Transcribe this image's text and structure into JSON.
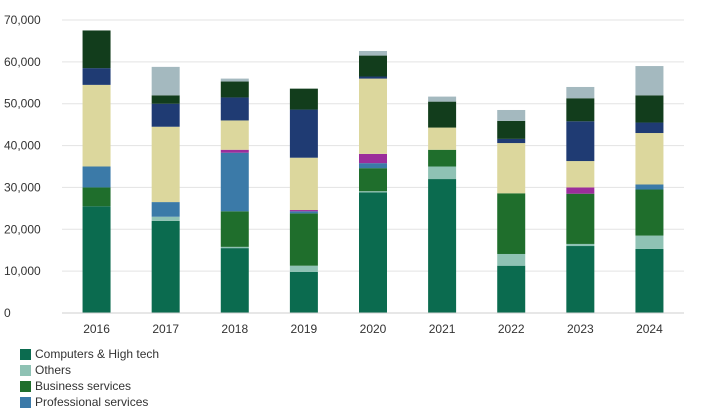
{
  "chart_data": {
    "type": "bar",
    "stacked": true,
    "categories": [
      "2016",
      "2017",
      "2018",
      "2019",
      "2020",
      "2021",
      "2022",
      "2023",
      "2024"
    ],
    "ylim": [
      0,
      70000
    ],
    "yticks": [
      0,
      10000,
      20000,
      30000,
      40000,
      50000,
      60000,
      70000
    ],
    "ytick_labels": [
      "0",
      "10,000",
      "20,000",
      "30,000",
      "40,000",
      "50,000",
      "60,000",
      "70,000"
    ],
    "grid": true,
    "legend_position": "bottom-left",
    "series": [
      {
        "name": "Computers & High tech",
        "color": "#0b6b4f",
        "values": [
          25500,
          22000,
          15500,
          9800,
          28800,
          32000,
          11300,
          16000,
          15300
        ]
      },
      {
        "name": "Others",
        "color": "#8fc2b4",
        "values": [
          0,
          1000,
          300,
          1500,
          300,
          3000,
          2800,
          500,
          3200
        ]
      },
      {
        "name": "Business services",
        "color": "#1f6e2c",
        "values": [
          4500,
          0,
          8500,
          12500,
          5500,
          4000,
          14500,
          12000,
          11000
        ]
      },
      {
        "name": "Professional services",
        "color": "#3b7aa8",
        "values": [
          5000,
          3500,
          14000,
          500,
          1200,
          0,
          0,
          0,
          1200
        ]
      },
      {
        "name": "",
        "color": "#9b2e9b",
        "values": [
          0,
          0,
          700,
          300,
          2200,
          0,
          0,
          1500,
          0
        ]
      },
      {
        "name": "",
        "color": "#dcd79d",
        "values": [
          19500,
          18000,
          7000,
          12500,
          18000,
          5300,
          12000,
          6300,
          12300
        ]
      },
      {
        "name": "",
        "color": "#1f3b73",
        "values": [
          4000,
          5500,
          5500,
          11500,
          500,
          0,
          1000,
          9500,
          2500
        ]
      },
      {
        "name": "",
        "color": "#123d1c",
        "values": [
          9000,
          2000,
          3800,
          5000,
          5000,
          6200,
          4300,
          5500,
          6500
        ]
      },
      {
        "name": "",
        "color": "#a4b9bf",
        "values": [
          0,
          6800,
          700,
          0,
          1100,
          1200,
          2600,
          2700,
          7000
        ]
      }
    ]
  }
}
